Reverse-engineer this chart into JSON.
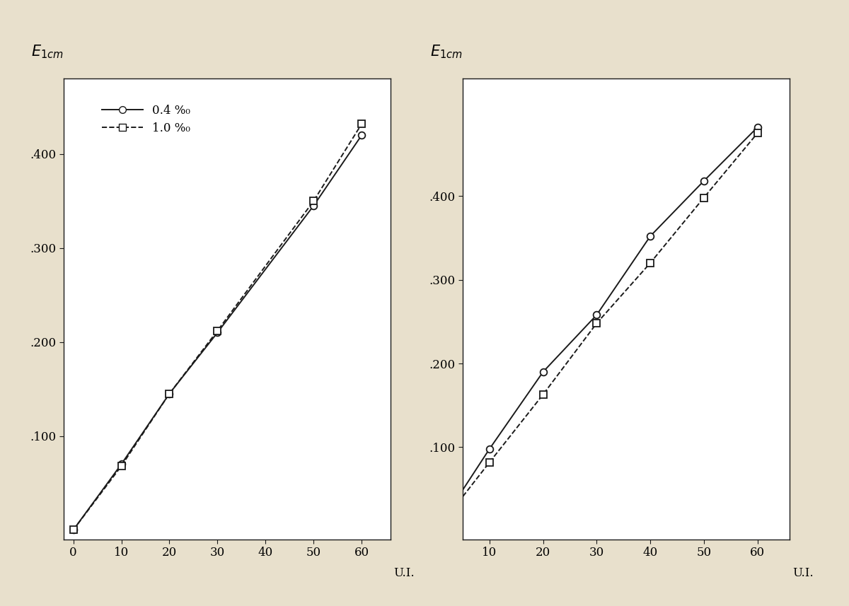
{
  "background_color": "#e8e0cc",
  "plot_bg_color": "#ffffff",
  "left_plot": {
    "x_solid": [
      0,
      10,
      20,
      30,
      50,
      60
    ],
    "y_solid": [
      0,
      0.07,
      0.145,
      0.21,
      0.345,
      0.42
    ],
    "x_dashed": [
      0,
      10,
      20,
      30,
      50,
      60
    ],
    "y_dashed": [
      0,
      0.068,
      0.145,
      0.212,
      0.35,
      0.432
    ],
    "xlim": [
      -2,
      66
    ],
    "ylim": [
      -0.01,
      0.48
    ],
    "xticks": [
      0,
      10,
      20,
      30,
      40,
      50,
      60
    ],
    "yticks": [
      0.1,
      0.2,
      0.3,
      0.4
    ],
    "ytick_labels": [
      ".100",
      ".200",
      ".300",
      ".400"
    ]
  },
  "right_plot": {
    "x_solid": [
      10,
      20,
      30,
      40,
      50,
      60
    ],
    "y_solid": [
      0.098,
      0.19,
      0.258,
      0.352,
      0.418,
      0.482
    ],
    "x_dashed": [
      10,
      20,
      30,
      40,
      50,
      60
    ],
    "y_dashed": [
      0.082,
      0.163,
      0.248,
      0.32,
      0.398,
      0.475
    ],
    "xlim": [
      5,
      66
    ],
    "ylim": [
      -0.01,
      0.54
    ],
    "xticks": [
      10,
      20,
      30,
      40,
      50,
      60
    ],
    "yticks": [
      0.1,
      0.2,
      0.3,
      0.4
    ],
    "ytick_labels": [
      ".100",
      ".200",
      ".300",
      ".400"
    ]
  },
  "line_color": "#1a1a1a",
  "marker_size": 7,
  "linewidth": 1.4
}
